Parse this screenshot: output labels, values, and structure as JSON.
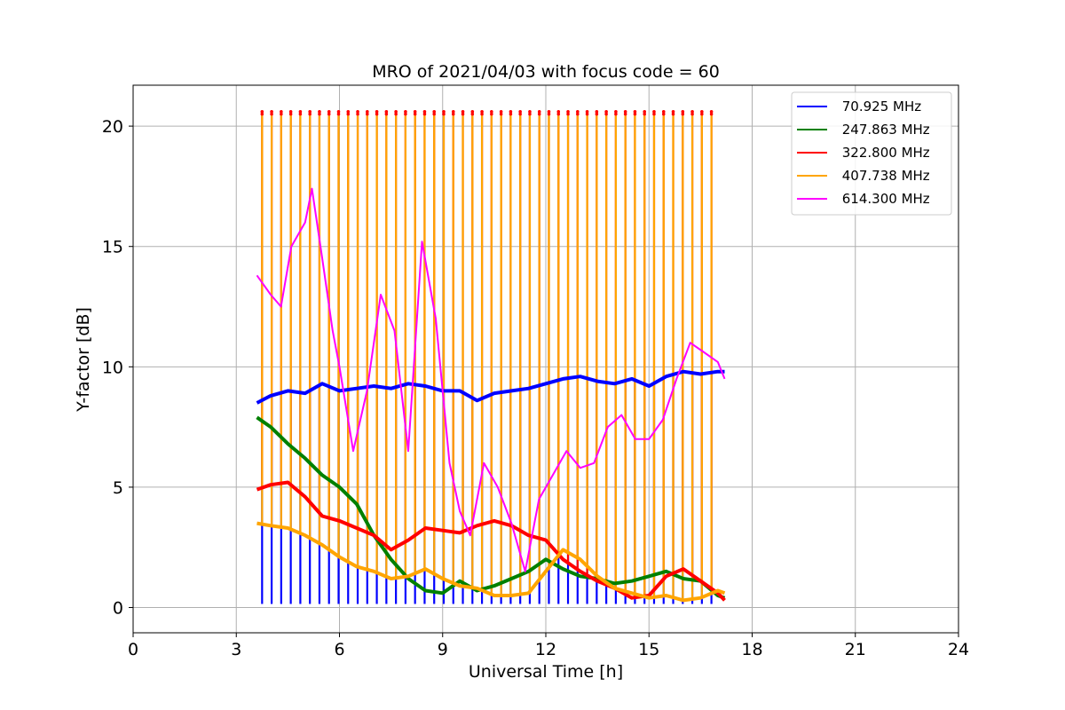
{
  "chart_data": {
    "type": "line",
    "title": "MRO of 2021/04/03 with focus code = 60",
    "xlabel": "Universal Time [h]",
    "ylabel": "Y-factor [dB]",
    "xlim": [
      0,
      24
    ],
    "ylim": [
      -1.05,
      21.7
    ],
    "xticks": [
      0,
      3,
      6,
      9,
      12,
      15,
      18,
      21,
      24
    ],
    "xtick_labels": [
      "0",
      "3",
      "6",
      "9",
      "12",
      "15",
      "18",
      "21",
      "24"
    ],
    "yticks": [
      0,
      5,
      10,
      15,
      20
    ],
    "ytick_labels": [
      "0",
      "5",
      "10",
      "15",
      "20"
    ],
    "grid": true,
    "legend_position": "top-right",
    "series": [
      {
        "name": " 70.925 MHz",
        "color": "#0000ff",
        "x": [
          3.6,
          4.0,
          4.5,
          5.0,
          5.5,
          6.0,
          6.5,
          7.0,
          7.5,
          8.0,
          8.5,
          9.0,
          9.5,
          10.0,
          10.5,
          11.0,
          11.5,
          12.0,
          12.5,
          13.0,
          13.5,
          14.0,
          14.5,
          15.0,
          15.5,
          16.0,
          16.5,
          17.0,
          17.2
        ],
        "y": [
          8.5,
          8.8,
          9.0,
          8.9,
          9.3,
          9.0,
          9.1,
          9.2,
          9.1,
          9.3,
          9.2,
          9.0,
          9.0,
          8.6,
          8.9,
          9.0,
          9.1,
          9.3,
          9.5,
          9.6,
          9.4,
          9.3,
          9.5,
          9.2,
          9.6,
          9.8,
          9.7,
          9.8,
          9.8
        ],
        "spikes": {
          "start": 3.75,
          "step": 0.278,
          "end": 17.0,
          "to": 0.15
        }
      },
      {
        "name": " 247.863 MHz",
        "color": "#008000",
        "x": [
          3.6,
          4.0,
          4.5,
          5.0,
          5.5,
          6.0,
          6.5,
          7.0,
          7.5,
          8.0,
          8.5,
          9.0,
          9.5,
          10.0,
          10.5,
          11.0,
          11.5,
          12.0,
          12.5,
          13.0,
          13.5,
          14.0,
          14.5,
          15.0,
          15.5,
          16.0,
          16.5,
          17.0,
          17.2
        ],
        "y": [
          7.9,
          7.5,
          6.8,
          6.2,
          5.5,
          5.0,
          4.3,
          3.0,
          2.0,
          1.2,
          0.7,
          0.6,
          1.1,
          0.7,
          0.9,
          1.2,
          1.5,
          2.0,
          1.6,
          1.3,
          1.2,
          1.0,
          1.1,
          1.3,
          1.5,
          1.2,
          1.1,
          0.5,
          0.4
        ]
      },
      {
        "name": " 322.800 MHz",
        "color": "#ff0000",
        "x": [
          3.6,
          4.0,
          4.5,
          5.0,
          5.5,
          6.0,
          6.5,
          7.0,
          7.5,
          8.0,
          8.5,
          9.0,
          9.5,
          10.0,
          10.5,
          11.0,
          11.5,
          12.0,
          12.5,
          13.0,
          13.5,
          14.0,
          14.5,
          15.0,
          15.5,
          16.0,
          16.5,
          17.0,
          17.2
        ],
        "y": [
          4.9,
          5.1,
          5.2,
          4.6,
          3.8,
          3.6,
          3.3,
          3.0,
          2.4,
          2.8,
          3.3,
          3.2,
          3.1,
          3.4,
          3.6,
          3.4,
          3.0,
          2.8,
          2.0,
          1.5,
          1.1,
          0.8,
          0.4,
          0.5,
          1.3,
          1.6,
          1.1,
          0.6,
          0.3
        ],
        "spikes": {
          "start": 3.75,
          "step": 0.278,
          "end": 17.0,
          "to": 20.6
        }
      },
      {
        "name": " 407.738 MHz",
        "color": "#ffa500",
        "x": [
          3.6,
          4.0,
          4.5,
          5.0,
          5.5,
          6.0,
          6.5,
          7.0,
          7.5,
          8.0,
          8.5,
          9.0,
          9.5,
          10.0,
          10.5,
          11.0,
          11.5,
          12.0,
          12.5,
          13.0,
          13.5,
          14.0,
          14.5,
          15.0,
          15.5,
          16.0,
          16.5,
          17.0,
          17.2
        ],
        "y": [
          3.5,
          3.4,
          3.3,
          3.0,
          2.6,
          2.1,
          1.7,
          1.5,
          1.2,
          1.3,
          1.6,
          1.2,
          0.9,
          0.8,
          0.5,
          0.5,
          0.6,
          1.5,
          2.4,
          2.0,
          1.3,
          0.8,
          0.6,
          0.4,
          0.5,
          0.3,
          0.4,
          0.7,
          0.6
        ],
        "spikes": {
          "start": 3.75,
          "step": 0.278,
          "end": 17.0,
          "to": 20.5
        }
      },
      {
        "name": " 614.300 MHz",
        "color": "#ff00ff",
        "x": [
          3.6,
          4.0,
          4.3,
          4.6,
          5.0,
          5.2,
          5.5,
          5.8,
          6.0,
          6.4,
          6.8,
          7.2,
          7.6,
          8.0,
          8.4,
          8.8,
          9.2,
          9.5,
          9.8,
          10.2,
          10.6,
          11.0,
          11.4,
          11.8,
          12.2,
          12.6,
          13.0,
          13.4,
          13.8,
          14.2,
          14.6,
          15.0,
          15.4,
          15.8,
          16.2,
          16.6,
          17.0,
          17.2
        ],
        "y": [
          13.8,
          13.0,
          12.5,
          15.0,
          16.0,
          17.4,
          14.5,
          11.5,
          10.0,
          6.5,
          9.0,
          13.0,
          11.5,
          6.5,
          15.2,
          12.0,
          6.0,
          4.0,
          3.0,
          6.0,
          5.0,
          3.5,
          1.5,
          4.5,
          5.5,
          6.5,
          5.8,
          6.0,
          7.5,
          8.0,
          7.0,
          7.0,
          7.8,
          9.5,
          11.0,
          10.6,
          10.2,
          9.5
        ]
      }
    ]
  }
}
